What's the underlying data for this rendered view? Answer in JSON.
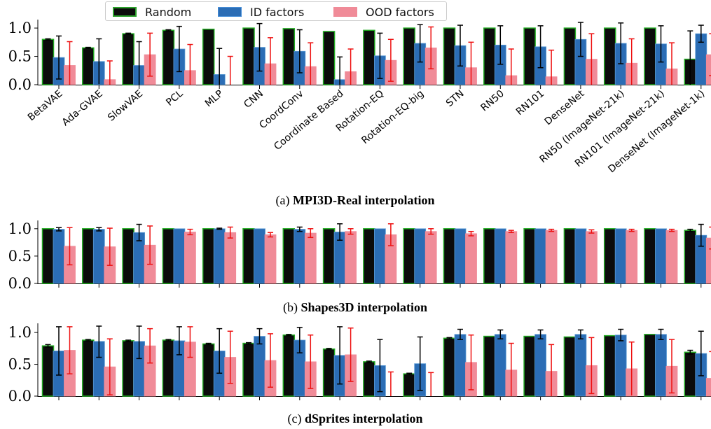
{
  "legend": {
    "items": [
      {
        "label": "Random",
        "color": "#0b0b0b",
        "edge": "#2ca02c"
      },
      {
        "label": "ID factors",
        "color": "#2b6db5",
        "edge": "#4a90d9"
      },
      {
        "label": "OOD factors",
        "color": "#f08b98",
        "edge": "#f08b98"
      }
    ]
  },
  "colors": {
    "random": "#0b0b0b",
    "random_edge": "#22aa22",
    "id": "#2b6db5",
    "ood": "#f08b98",
    "id_err": "#000000",
    "ood_err": "#ee1111"
  },
  "chart_data": [
    {
      "type": "bar",
      "caption_prefix": "(a)",
      "caption_bold": "MPI3D-Real interpolation",
      "ylim": [
        0,
        1.1
      ],
      "yticks": [
        "0.0",
        "0.5",
        "1.0"
      ],
      "show_xticklabels": true,
      "categories": [
        "BetaVAE",
        "Ada-GVAE",
        "SlowVAE",
        "PCL",
        "MLP",
        "CNN",
        "CoordConv",
        "Coordinate Based",
        "Rotation-EQ",
        "Rotation-EQ-big",
        "STN",
        "RN50",
        "RN101",
        "DenseNet",
        "RN50 (ImageNet-21k)",
        "RN101 (ImageNet-21k)",
        "DenseNet (ImageNet-1k)"
      ],
      "series": [
        {
          "name": "Random",
          "values": [
            0.8,
            0.65,
            0.9,
            0.96,
            0.98,
            1.0,
            0.99,
            0.94,
            0.96,
            1.0,
            1.0,
            1.0,
            1.0,
            1.0,
            1.0,
            1.0,
            0.45
          ],
          "err": [
            0.01,
            0.01,
            0.01,
            0.01,
            0.0,
            0.0,
            0.0,
            0.0,
            0.0,
            0.0,
            0.0,
            0.0,
            0.0,
            0.0,
            0.0,
            0.0,
            0.5
          ]
        },
        {
          "name": "ID factors",
          "values": [
            0.48,
            0.41,
            0.34,
            0.63,
            0.18,
            0.66,
            0.59,
            0.09,
            0.51,
            0.73,
            0.69,
            0.7,
            0.67,
            0.8,
            0.73,
            0.72,
            0.9
          ],
          "err": [
            0.38,
            0.4,
            0.42,
            0.4,
            0.46,
            0.42,
            0.38,
            0.4,
            0.4,
            0.33,
            0.36,
            0.34,
            0.37,
            0.3,
            0.36,
            0.32,
            0.15
          ]
        },
        {
          "name": "OOD factors",
          "values": [
            0.34,
            0.09,
            0.53,
            0.25,
            0.0,
            0.37,
            0.32,
            0.23,
            0.43,
            0.65,
            0.3,
            0.16,
            0.14,
            0.45,
            0.38,
            0.28,
            0.53
          ],
          "err": [
            0.42,
            0.33,
            0.38,
            0.46,
            0.5,
            0.46,
            0.42,
            0.4,
            0.37,
            0.37,
            0.45,
            0.47,
            0.47,
            0.45,
            0.43,
            0.46,
            0.37
          ]
        }
      ]
    },
    {
      "type": "bar",
      "caption_prefix": "(b)",
      "caption_bold": "Shapes3D interpolation",
      "ylim": [
        0,
        1.1
      ],
      "yticks": [
        "0.0",
        "0.5",
        "1.0"
      ],
      "show_xticklabels": false,
      "categories": [
        "BetaVAE",
        "Ada-GVAE",
        "SlowVAE",
        "PCL",
        "MLP",
        "CNN",
        "CoordConv",
        "Coordinate Based",
        "Rotation-EQ",
        "Rotation-EQ-big",
        "STN",
        "RN50",
        "RN101",
        "DenseNet",
        "RN50 (ImageNet-21k)",
        "RN101 (ImageNet-21k)",
        "DenseNet (ImageNet-1k)"
      ],
      "series": [
        {
          "name": "Random",
          "values": [
            1.0,
            1.0,
            1.0,
            1.0,
            1.0,
            1.0,
            1.0,
            1.0,
            1.0,
            1.0,
            1.0,
            1.0,
            1.0,
            1.0,
            1.0,
            1.0,
            0.97
          ],
          "err": [
            0.0,
            0.0,
            0.0,
            0.0,
            0.0,
            0.0,
            0.0,
            0.0,
            0.0,
            0.0,
            0.0,
            0.0,
            0.0,
            0.0,
            0.0,
            0.0,
            0.02
          ]
        },
        {
          "name": "ID factors",
          "values": [
            0.99,
            0.99,
            0.93,
            1.0,
            1.0,
            1.0,
            0.99,
            0.94,
            1.0,
            1.0,
            1.0,
            1.0,
            1.0,
            1.0,
            1.0,
            1.0,
            0.88
          ],
          "err": [
            0.03,
            0.03,
            0.15,
            0.0,
            0.01,
            0.0,
            0.04,
            0.15,
            0.0,
            0.0,
            0.0,
            0.0,
            0.0,
            0.0,
            0.0,
            0.0,
            0.2
          ]
        },
        {
          "name": "OOD factors",
          "values": [
            0.68,
            0.67,
            0.7,
            0.94,
            0.93,
            0.89,
            0.92,
            0.95,
            0.89,
            0.95,
            0.91,
            0.95,
            0.97,
            0.95,
            0.97,
            0.97,
            0.83
          ],
          "err": [
            0.34,
            0.34,
            0.35,
            0.05,
            0.1,
            0.04,
            0.08,
            0.05,
            0.2,
            0.05,
            0.04,
            0.02,
            0.02,
            0.03,
            0.02,
            0.02,
            0.2
          ]
        }
      ]
    },
    {
      "type": "bar",
      "caption_prefix": "(c)",
      "caption_bold": "dSprites interpolation",
      "ylim": [
        0,
        1.1
      ],
      "yticks": [
        "0.0",
        "0.5",
        "1.0"
      ],
      "show_xticklabels": false,
      "categories": [
        "BetaVAE",
        "Ada-GVAE",
        "SlowVAE",
        "PCL",
        "MLP",
        "CNN",
        "CoordConv",
        "Coordinate Based",
        "Rotation-EQ",
        "Rotation-EQ-big",
        "STN",
        "RN50",
        "RN101",
        "DenseNet",
        "RN50 (ImageNet-21k)",
        "RN101 (ImageNet-21k)",
        "DenseNet (ImageNet-1k)"
      ],
      "series": [
        {
          "name": "Random",
          "values": [
            0.79,
            0.88,
            0.87,
            0.88,
            0.82,
            0.83,
            0.96,
            0.74,
            0.54,
            0.35,
            0.91,
            0.94,
            0.94,
            0.93,
            0.95,
            0.97,
            0.69
          ],
          "err": [
            0.02,
            0.01,
            0.01,
            0.01,
            0.01,
            0.01,
            0.01,
            0.01,
            0.01,
            0.01,
            0.01,
            0.0,
            0.0,
            0.0,
            0.0,
            0.0,
            0.03
          ]
        },
        {
          "name": "ID factors",
          "values": [
            0.71,
            0.86,
            0.86,
            0.87,
            0.71,
            0.94,
            0.88,
            0.64,
            0.48,
            0.51,
            0.97,
            0.97,
            0.97,
            0.97,
            0.96,
            0.97,
            0.67
          ],
          "err": [
            0.38,
            0.25,
            0.27,
            0.22,
            0.35,
            0.12,
            0.2,
            0.45,
            0.41,
            0.42,
            0.08,
            0.07,
            0.07,
            0.07,
            0.09,
            0.08,
            0.35
          ]
        },
        {
          "name": "OOD factors",
          "values": [
            0.72,
            0.46,
            0.79,
            0.85,
            0.61,
            0.56,
            0.54,
            0.65,
            0.0,
            0.0,
            0.53,
            0.41,
            0.39,
            0.48,
            0.43,
            0.47,
            0.28
          ],
          "err": [
            0.37,
            0.44,
            0.27,
            0.24,
            0.41,
            0.42,
            0.42,
            0.42,
            0.38,
            0.37,
            0.43,
            0.42,
            0.42,
            0.44,
            0.42,
            0.42,
            0.42
          ]
        }
      ]
    }
  ]
}
